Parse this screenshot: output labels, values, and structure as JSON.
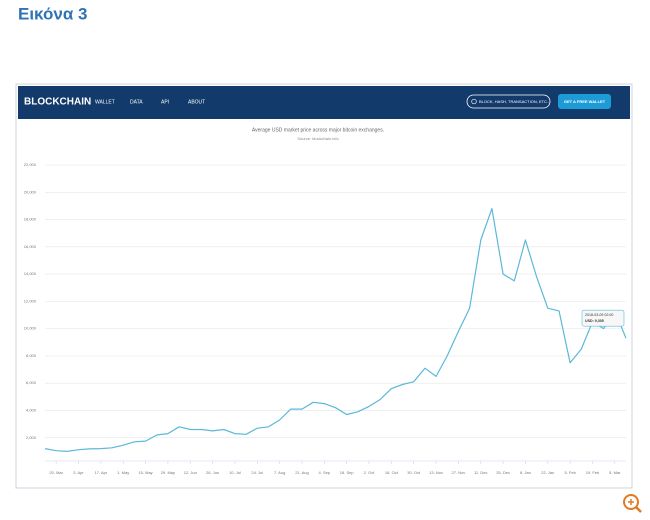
{
  "heading": "Εικόνα 3",
  "nav": {
    "brand": "BLOCKCHAIN",
    "links": [
      "WALLET",
      "DATA",
      "API",
      "ABOUT"
    ],
    "search": "BLOCK, HASH, TRANSACTION, ETC...",
    "button": "GET A FREE WALLET"
  },
  "chart_data": {
    "type": "line",
    "subtitle": "Average USD market price across major bitcoin exchanges.",
    "source": "Source: blockchain.info",
    "categories": [
      null,
      "20. Mar",
      null,
      "3. Apr",
      null,
      "17. Apr",
      null,
      "1. May",
      null,
      "15. May",
      null,
      "29. May",
      null,
      "12. Jun",
      null,
      "26. Jun",
      null,
      "10. Jul",
      null,
      "24. Jul",
      null,
      "7. Aug",
      null,
      "21. Aug",
      null,
      "4. Sep",
      null,
      "18. Sep",
      null,
      "2. Oct",
      null,
      "16. Oct",
      null,
      "30. Oct",
      null,
      "13. Nov",
      null,
      "27. Nov",
      null,
      "11. Dec",
      null,
      "25. Dec",
      null,
      "8. Jan",
      null,
      "22. Jan",
      null,
      "5. Feb",
      null,
      "19. Feb",
      null,
      "5. Mar",
      null
    ],
    "series": [
      {
        "name": "USD",
        "color": "#5bb8d9",
        "values": [
          1200,
          1050,
          1000,
          1120,
          1180,
          1200,
          1260,
          1450,
          1700,
          1750,
          2200,
          2300,
          2800,
          2600,
          2600,
          2500,
          2600,
          2300,
          2250,
          2700,
          2800,
          3300,
          4100,
          4100,
          4600,
          4500,
          4200,
          3700,
          3900,
          4300,
          4800,
          5600,
          5900,
          6100,
          7100,
          6500,
          8000,
          9800,
          11500,
          16500,
          18800,
          14000,
          13500,
          16500,
          13800,
          11500,
          11300,
          7500,
          8500,
          10500,
          10000,
          11300,
          9300
        ]
      }
    ],
    "ylim": [
      0,
      22000
    ],
    "yticks": [
      {
        "value": 2000,
        "label": "2,000"
      },
      {
        "value": 4000,
        "label": "4,000"
      },
      {
        "value": 6000,
        "label": "6,000"
      },
      {
        "value": 8000,
        "label": "8,000"
      },
      {
        "value": 10000,
        "label": "10,000"
      },
      {
        "value": 12000,
        "label": "12,000"
      },
      {
        "value": 14000,
        "label": "14,000"
      },
      {
        "value": 16000,
        "label": "16,000"
      },
      {
        "value": 18000,
        "label": "18,000"
      },
      {
        "value": 20000,
        "label": "20,000"
      },
      {
        "value": 22000,
        "label": "22,000"
      }
    ],
    "grid": true,
    "tooltip": {
      "title": "2018-03-09 02:00",
      "text": "USD: 9,305"
    }
  }
}
